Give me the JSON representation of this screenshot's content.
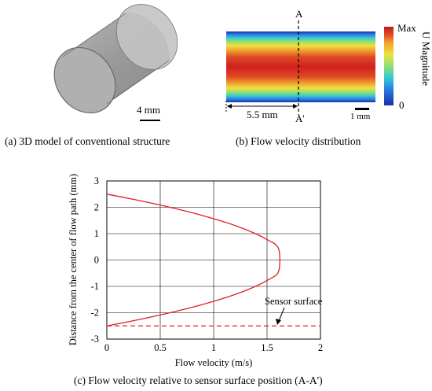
{
  "panel_a": {
    "caption": "(a) 3D model of conventional structure",
    "scale_label": "4 mm"
  },
  "panel_b": {
    "caption": "(b) Flow velocity distribution",
    "section_top": "A",
    "section_bottom": "A'",
    "distance_label": "5.5 mm",
    "scale_label": "1 mm",
    "colorbar_max": "Max",
    "colorbar_min": "0",
    "colorbar_title": "U Magnitude"
  },
  "panel_c": {
    "caption": "(c) Flow velocity relative to sensor surface position (A-A')",
    "annotation": "Sensor surface"
  },
  "colors": {
    "curve": "#e02020",
    "sensor_line": "#e02020"
  },
  "chart_data": {
    "type": "line",
    "xlabel": "Flow velocity (m/s)",
    "ylabel": "Distance from the center of flow path (mm)",
    "xlim": [
      0,
      2
    ],
    "ylim": [
      -3,
      3
    ],
    "xticks": [
      "0",
      "0.5",
      "1",
      "1.5",
      "2"
    ],
    "yticks": [
      "3",
      "2",
      "1",
      "0",
      "-1",
      "-2",
      "-3"
    ],
    "grid": true,
    "series": [
      {
        "style": "solid",
        "x": [
          0,
          0.312,
          0.592,
          0.84,
          1.056,
          1.24,
          1.392,
          1.512,
          1.6,
          1.62,
          1.6,
          1.512,
          1.392,
          1.24,
          1.056,
          0.84,
          0.592,
          0.312,
          0
        ],
        "y": [
          2.5,
          2.25,
          2.0,
          1.75,
          1.5,
          1.25,
          1.0,
          0.75,
          0.5,
          0,
          -0.5,
          -0.75,
          -1.0,
          -1.25,
          -1.5,
          -1.75,
          -2.0,
          -2.25,
          -2.5
        ]
      },
      {
        "name": "Sensor surface",
        "style": "dashed",
        "x": [
          0,
          2
        ],
        "y": [
          -2.5,
          -2.5
        ]
      }
    ]
  }
}
